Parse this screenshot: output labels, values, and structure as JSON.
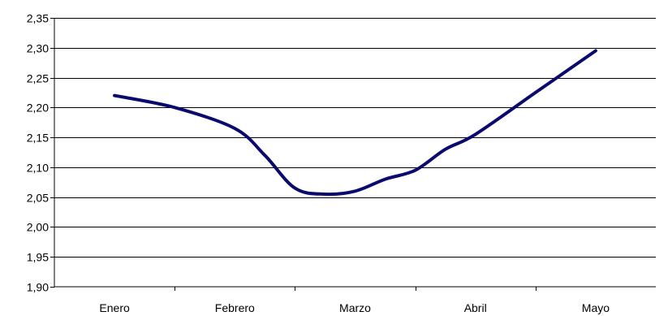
{
  "chart_data": {
    "type": "line",
    "title": "",
    "xlabel": "",
    "ylabel": "",
    "categories": [
      "Enero",
      "Febrero",
      "Marzo",
      "Abril",
      "Mayo"
    ],
    "yticks": [
      "1,90",
      "1,95",
      "2,00",
      "2,05",
      "2,10",
      "2,15",
      "2,20",
      "2,25",
      "2,30",
      "2,35"
    ],
    "ylim": [
      1.9,
      2.35
    ],
    "grid": true,
    "legend": "none",
    "series": [
      {
        "color": "#0a0a6e",
        "x": [
          0,
          0.5,
          1,
          1.25,
          1.5,
          1.75,
          2,
          2.25,
          2.5,
          2.75,
          3,
          3.5,
          4
        ],
        "values": [
          2.22,
          2.2,
          2.165,
          2.12,
          2.065,
          2.055,
          2.06,
          2.08,
          2.095,
          2.13,
          2.155,
          2.225,
          2.295
        ]
      }
    ]
  }
}
